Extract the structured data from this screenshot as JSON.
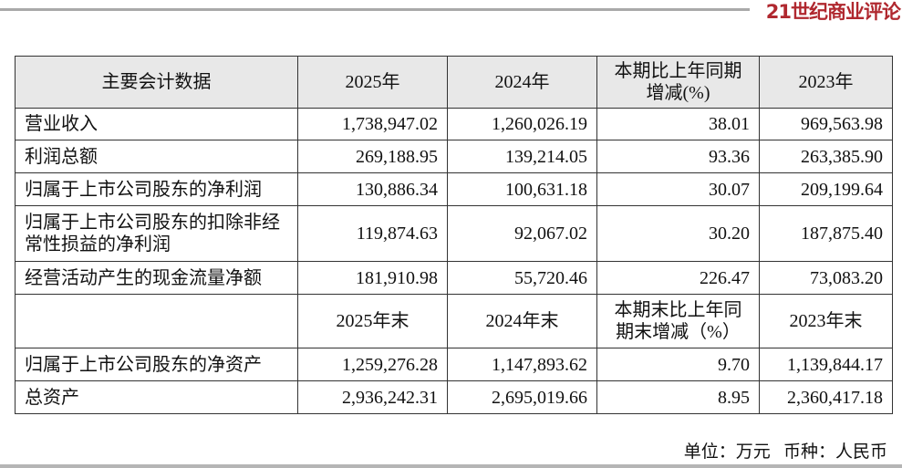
{
  "brand": {
    "logo_text": "21世纪商业评论",
    "logo_color": "#b0282f"
  },
  "table": {
    "header": [
      "主要会计数据",
      "2025年",
      "2024年",
      "本期比上年同期增减(%)",
      "2023年"
    ],
    "rows": [
      [
        "营业收入",
        "1,738,947.02",
        "1,260,026.19",
        "38.01",
        "969,563.98"
      ],
      [
        "利润总额",
        "269,188.95",
        "139,214.05",
        "93.36",
        "263,385.90"
      ],
      [
        "归属于上市公司股东的净利润",
        "130,886.34",
        "100,631.18",
        "30.07",
        "209,199.64"
      ],
      [
        "归属于上市公司股东的扣除非经常性损益的净利润",
        "119,874.63",
        "92,067.02",
        "30.20",
        "187,875.40"
      ],
      [
        "经营活动产生的现金流量净额",
        "181,910.98",
        "55,720.46",
        "226.47",
        "73,083.20"
      ]
    ],
    "header2": [
      "",
      "2025年末",
      "2024年末",
      "本期末比上年同期末增减（%）",
      "2023年末"
    ],
    "rows2": [
      [
        "归属于上市公司股东的净资产",
        "1,259,276.28",
        "1,147,893.62",
        "9.70",
        "1,139,844.17"
      ],
      [
        "总资产",
        "2,936,242.31",
        "2,695,019.66",
        "8.95",
        "2,360,417.18"
      ]
    ]
  },
  "footer": {
    "unit": "单位：万元",
    "currency": "币种：人民币"
  }
}
